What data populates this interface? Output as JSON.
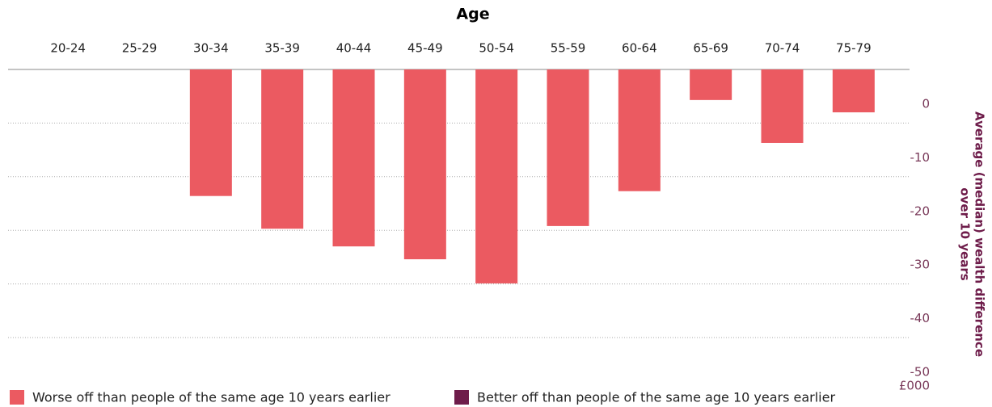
{
  "chart_data": {
    "type": "bar",
    "title": "Age",
    "categories": [
      "20-24",
      "25-29",
      "30-34",
      "35-39",
      "40-44",
      "45-49",
      "50-54",
      "55-59",
      "60-64",
      "65-69",
      "70-74",
      "75-79"
    ],
    "series": [
      {
        "name": "Worse off than people of the same age 10 years earlier",
        "color": "#eb5a61",
        "values": [
          null,
          null,
          -23.6,
          -29.7,
          -33.0,
          -35.4,
          -39.9,
          -29.2,
          -22.7,
          -5.7,
          -13.7,
          -8.0
        ]
      },
      {
        "name": "Better off than people of the same age 10 years earlier",
        "color": "#6e1c4a",
        "values": [
          null,
          null,
          null,
          null,
          null,
          null,
          null,
          null,
          null,
          null,
          null,
          null
        ]
      }
    ],
    "ylim": [
      -50,
      0
    ],
    "yticks": [
      0,
      -10,
      -20,
      -30,
      -40,
      -50
    ],
    "y_label": [
      "Average (median) wealth difference",
      "over 10 years"
    ],
    "unit_label": "£000",
    "grid": true
  }
}
